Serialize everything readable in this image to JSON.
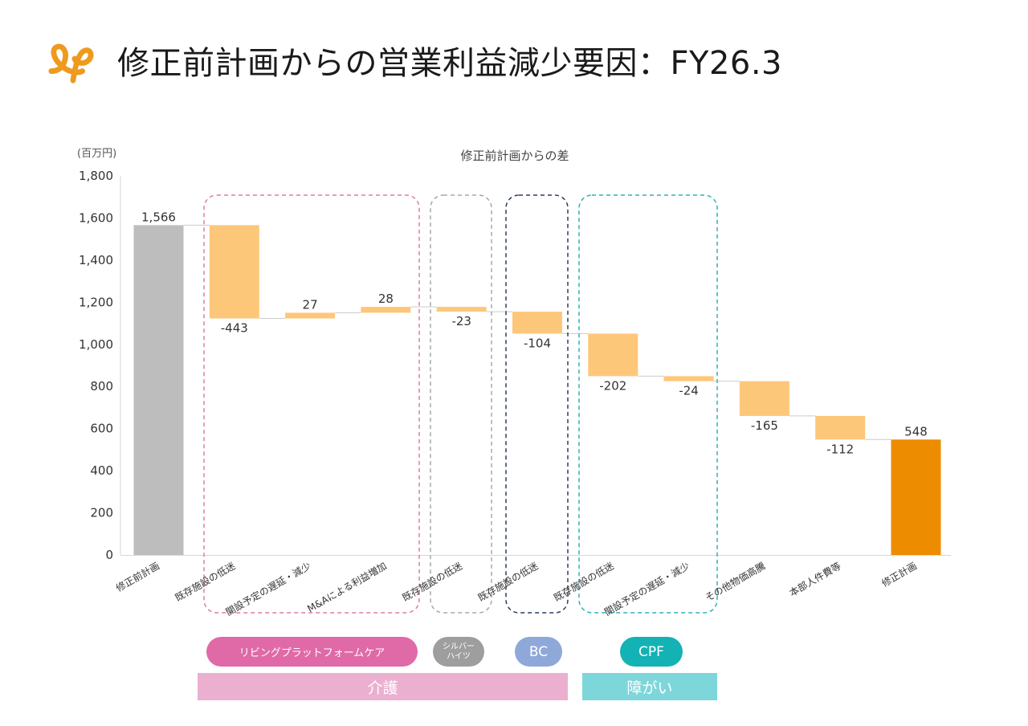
{
  "page": {
    "title": "修正前計画からの営業利益減少要因：FY26.3"
  },
  "colors": {
    "logo": "#EE9A1E",
    "start_bar": "#BDBDBD",
    "end_bar": "#EE8C00",
    "delta_bar": "#FDC77A",
    "connector": "#CCCCCC",
    "living_platform_care": "#E06AA8",
    "silver_heights": "#9E9E9E",
    "bc": "#8FA8DA",
    "cpf": "#13B2B5",
    "kaigo_band": "#EBB0D0",
    "shougai_band": "#7DD6DA",
    "box_pink": "#E07AAE",
    "box_gray": "#A8A8A8",
    "box_navy": "#2C3E5C",
    "box_teal": "#2EB2BA"
  },
  "chart_data": {
    "type": "waterfall",
    "title": "修正前計画からの差",
    "unit_label": "(百万円)",
    "ylim": [
      0,
      1800
    ],
    "yticks": [
      "0",
      "200",
      "400",
      "600",
      "800",
      "1,000",
      "1,200",
      "1,400",
      "1,600",
      "1,800"
    ],
    "grid": false,
    "categories": [
      "修正前計画",
      "既存施設の低迷",
      "開設予定の遅延・減少",
      "M&Aによる利益増加",
      "既存施設の低迷",
      "既存施設の低迷",
      "既存施設の低迷",
      "開設予定の遅延・減少",
      "その他物価高騰",
      "本部人件費等",
      "修正計画"
    ],
    "values": [
      1566,
      -443,
      27,
      28,
      -23,
      -104,
      -202,
      -24,
      -165,
      -112,
      548
    ],
    "labels": [
      "1,566",
      "-443",
      "27",
      "28",
      "-23",
      "-104",
      "-202",
      "-24",
      "-165",
      "-112",
      "548"
    ],
    "kinds": [
      "total",
      "delta",
      "delta",
      "delta",
      "delta",
      "delta",
      "delta",
      "delta",
      "delta",
      "delta",
      "total"
    ]
  },
  "segments": {
    "living_platform_care": "リビングプラットフォームケア",
    "silver_heights": "シルバー\nハイツ",
    "bc": "BC",
    "cpf": "CPF",
    "kaigo": "介護",
    "shougai": "障がい"
  }
}
